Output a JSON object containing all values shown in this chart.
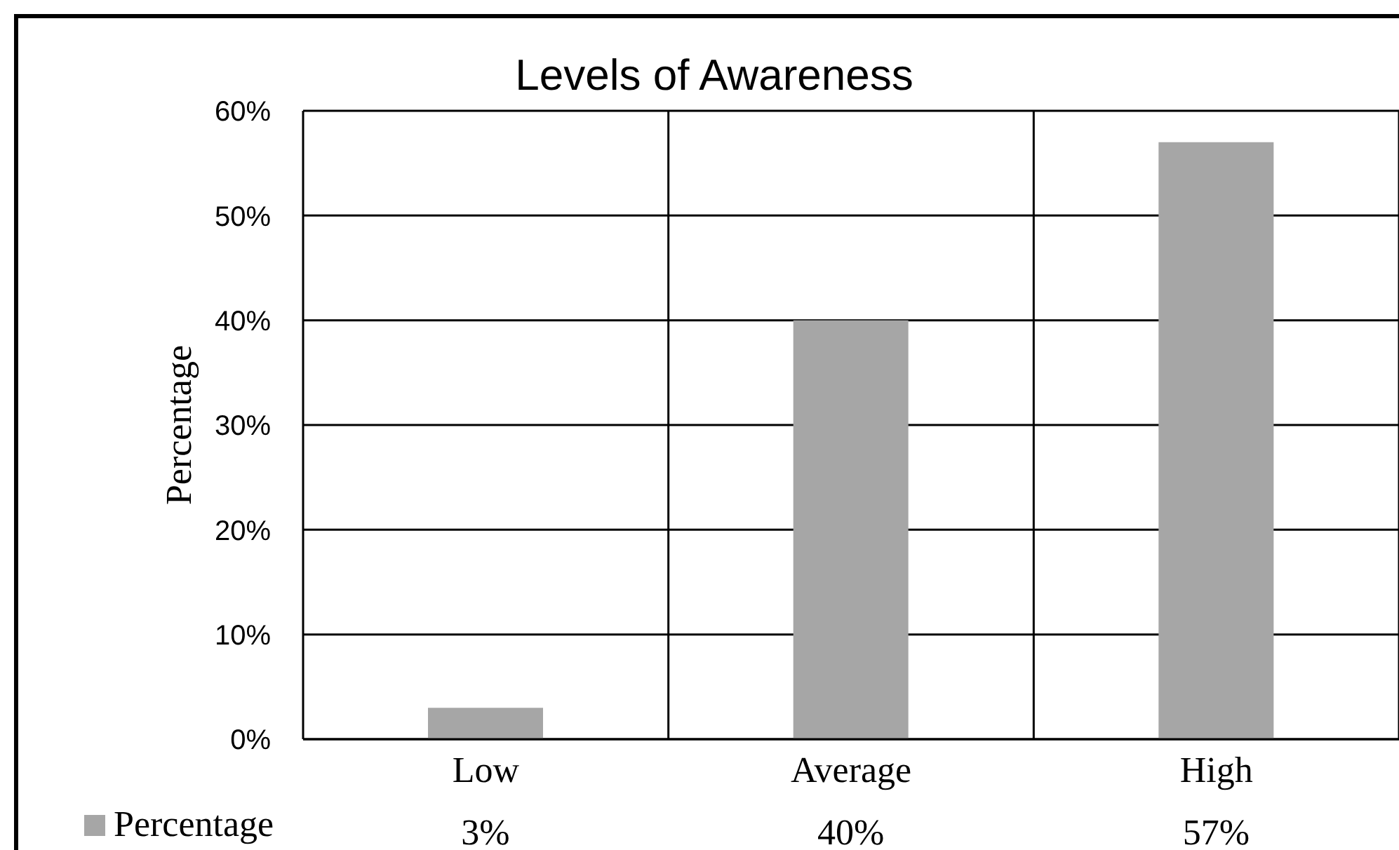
{
  "chart_data": {
    "type": "bar",
    "title": "Levels of Awareness",
    "ylabel": "Percentage",
    "categories": [
      "Low",
      "Average",
      "High"
    ],
    "series": [
      {
        "name": "Percentage",
        "color": "#a6a6a6",
        "values": [
          3,
          40,
          57
        ],
        "value_labels": [
          "3%",
          "40%",
          "57%"
        ]
      }
    ],
    "ylim": [
      0,
      60
    ],
    "yticks": [
      {
        "value": 0,
        "label": "0%"
      },
      {
        "value": 10,
        "label": "10%"
      },
      {
        "value": 20,
        "label": "20%"
      },
      {
        "value": 30,
        "label": "30%"
      },
      {
        "value": 40,
        "label": "40%"
      },
      {
        "value": 50,
        "label": "50%"
      },
      {
        "value": 60,
        "label": "60%"
      }
    ],
    "grid": true,
    "legend": "bottom left"
  }
}
